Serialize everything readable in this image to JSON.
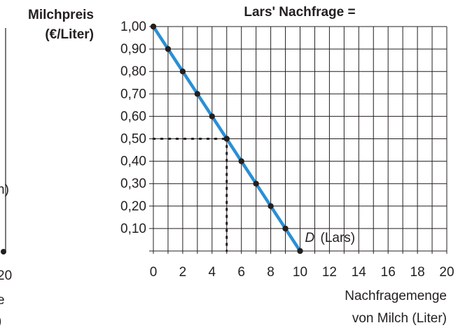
{
  "chart_data": {
    "type": "line",
    "title": "Lars' Nachfrage =",
    "y_label": [
      "Milchpreis",
      "(€/Liter)"
    ],
    "x_label": [
      "Nachfragemenge",
      "von Milch (Liter)"
    ],
    "annotation": {
      "italic": "D",
      "text": "(Lars)"
    },
    "x": [
      0,
      1,
      2,
      3,
      4,
      5,
      6,
      7,
      8,
      9,
      10
    ],
    "series": [
      {
        "name": "D (Lars)",
        "color": "#2b8fd3",
        "values": [
          1.0,
          0.9,
          0.8,
          0.7,
          0.6,
          0.5,
          0.4,
          0.3,
          0.2,
          0.1,
          0.0
        ]
      }
    ],
    "marker_color": "#231f20",
    "guide": {
      "x": 5,
      "y": 0.5
    },
    "xlim": [
      0,
      20
    ],
    "ylim": [
      0,
      1
    ],
    "xticks": [
      0,
      2,
      4,
      6,
      8,
      10,
      12,
      14,
      16,
      18,
      20
    ],
    "x_minor_ticks": [
      1,
      3,
      5,
      7,
      9,
      11,
      13,
      15,
      17,
      19
    ],
    "yticks": [
      {
        "value": 0.1,
        "label": "0,10"
      },
      {
        "value": 0.2,
        "label": "0,20"
      },
      {
        "value": 0.3,
        "label": "0,30"
      },
      {
        "value": 0.4,
        "label": "0,40"
      },
      {
        "value": 0.5,
        "label": "0,50"
      },
      {
        "value": 0.6,
        "label": "0,60"
      },
      {
        "value": 0.7,
        "label": "0,70"
      },
      {
        "value": 0.8,
        "label": "0,80"
      },
      {
        "value": 0.9,
        "label": "0,90"
      },
      {
        "value": 1.0,
        "label": "1,00"
      }
    ],
    "grid": true,
    "cropped_fragments": [
      "n)",
      "20",
      "e",
      ")"
    ]
  }
}
